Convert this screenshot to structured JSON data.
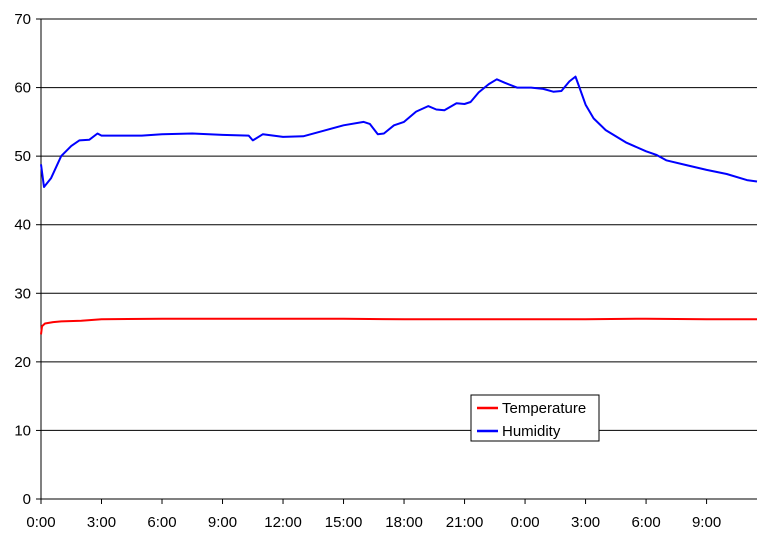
{
  "chart_data": {
    "type": "line",
    "title": "",
    "xlabel": "",
    "ylabel": "",
    "x_unit": "hours since 0:00 (day 1)",
    "xlim": [
      0,
      35.5
    ],
    "ylim": [
      0,
      70
    ],
    "y_ticks": [
      0,
      10,
      20,
      30,
      40,
      50,
      60,
      70
    ],
    "x_tick_labels": [
      "0:00",
      "3:00",
      "6:00",
      "9:00",
      "12:00",
      "15:00",
      "18:00",
      "21:00",
      "0:00",
      "3:00",
      "6:00",
      "9:00"
    ],
    "x_tick_positions": [
      0,
      3,
      6,
      9,
      12,
      15,
      18,
      21,
      24,
      27,
      30,
      33
    ],
    "grid": "horizontal",
    "legend_position": "lower-right",
    "series": [
      {
        "name": "Temperature",
        "color": "#ff0000",
        "points": [
          [
            0,
            24.0
          ],
          [
            0.05,
            25.2
          ],
          [
            0.2,
            25.6
          ],
          [
            0.6,
            25.8
          ],
          [
            1,
            25.9
          ],
          [
            2,
            26.0
          ],
          [
            3,
            26.2
          ],
          [
            6,
            26.3
          ],
          [
            9,
            26.3
          ],
          [
            12,
            26.3
          ],
          [
            15,
            26.3
          ],
          [
            18,
            26.2
          ],
          [
            21,
            26.2
          ],
          [
            24,
            26.2
          ],
          [
            27,
            26.2
          ],
          [
            30,
            26.3
          ],
          [
            33,
            26.2
          ],
          [
            35.5,
            26.2
          ]
        ]
      },
      {
        "name": "Humidity",
        "color": "#0000ff",
        "points": [
          [
            0,
            48.8
          ],
          [
            0.15,
            45.5
          ],
          [
            0.5,
            46.8
          ],
          [
            1,
            50.0
          ],
          [
            1.5,
            51.5
          ],
          [
            1.9,
            52.3
          ],
          [
            2.4,
            52.4
          ],
          [
            2.8,
            53.3
          ],
          [
            3,
            53.0
          ],
          [
            4,
            53.0
          ],
          [
            5,
            53.0
          ],
          [
            6,
            53.2
          ],
          [
            7.5,
            53.3
          ],
          [
            9,
            53.1
          ],
          [
            10.3,
            53.0
          ],
          [
            10.5,
            52.3
          ],
          [
            11,
            53.2
          ],
          [
            12,
            52.8
          ],
          [
            13,
            52.9
          ],
          [
            14,
            53.7
          ],
          [
            15,
            54.5
          ],
          [
            16,
            55.0
          ],
          [
            16.3,
            54.7
          ],
          [
            16.7,
            53.2
          ],
          [
            17,
            53.3
          ],
          [
            17.5,
            54.5
          ],
          [
            18,
            55.0
          ],
          [
            18.6,
            56.5
          ],
          [
            19.2,
            57.3
          ],
          [
            19.6,
            56.8
          ],
          [
            20,
            56.7
          ],
          [
            20.6,
            57.7
          ],
          [
            21,
            57.6
          ],
          [
            21.3,
            57.9
          ],
          [
            21.7,
            59.3
          ],
          [
            22.2,
            60.5
          ],
          [
            22.6,
            61.2
          ],
          [
            23.0,
            60.7
          ],
          [
            23.6,
            60.0
          ],
          [
            24.3,
            60.0
          ],
          [
            24.9,
            59.8
          ],
          [
            25.4,
            59.4
          ],
          [
            25.8,
            59.5
          ],
          [
            26.2,
            60.9
          ],
          [
            26.5,
            61.6
          ],
          [
            26.7,
            60.0
          ],
          [
            27,
            57.5
          ],
          [
            27.4,
            55.5
          ],
          [
            28,
            53.8
          ],
          [
            29,
            52.0
          ],
          [
            30,
            50.7
          ],
          [
            30.5,
            50.2
          ],
          [
            31,
            49.4
          ],
          [
            32,
            48.7
          ],
          [
            33,
            48.0
          ],
          [
            34,
            47.4
          ],
          [
            35,
            46.5
          ],
          [
            35.5,
            46.3
          ]
        ]
      }
    ]
  }
}
